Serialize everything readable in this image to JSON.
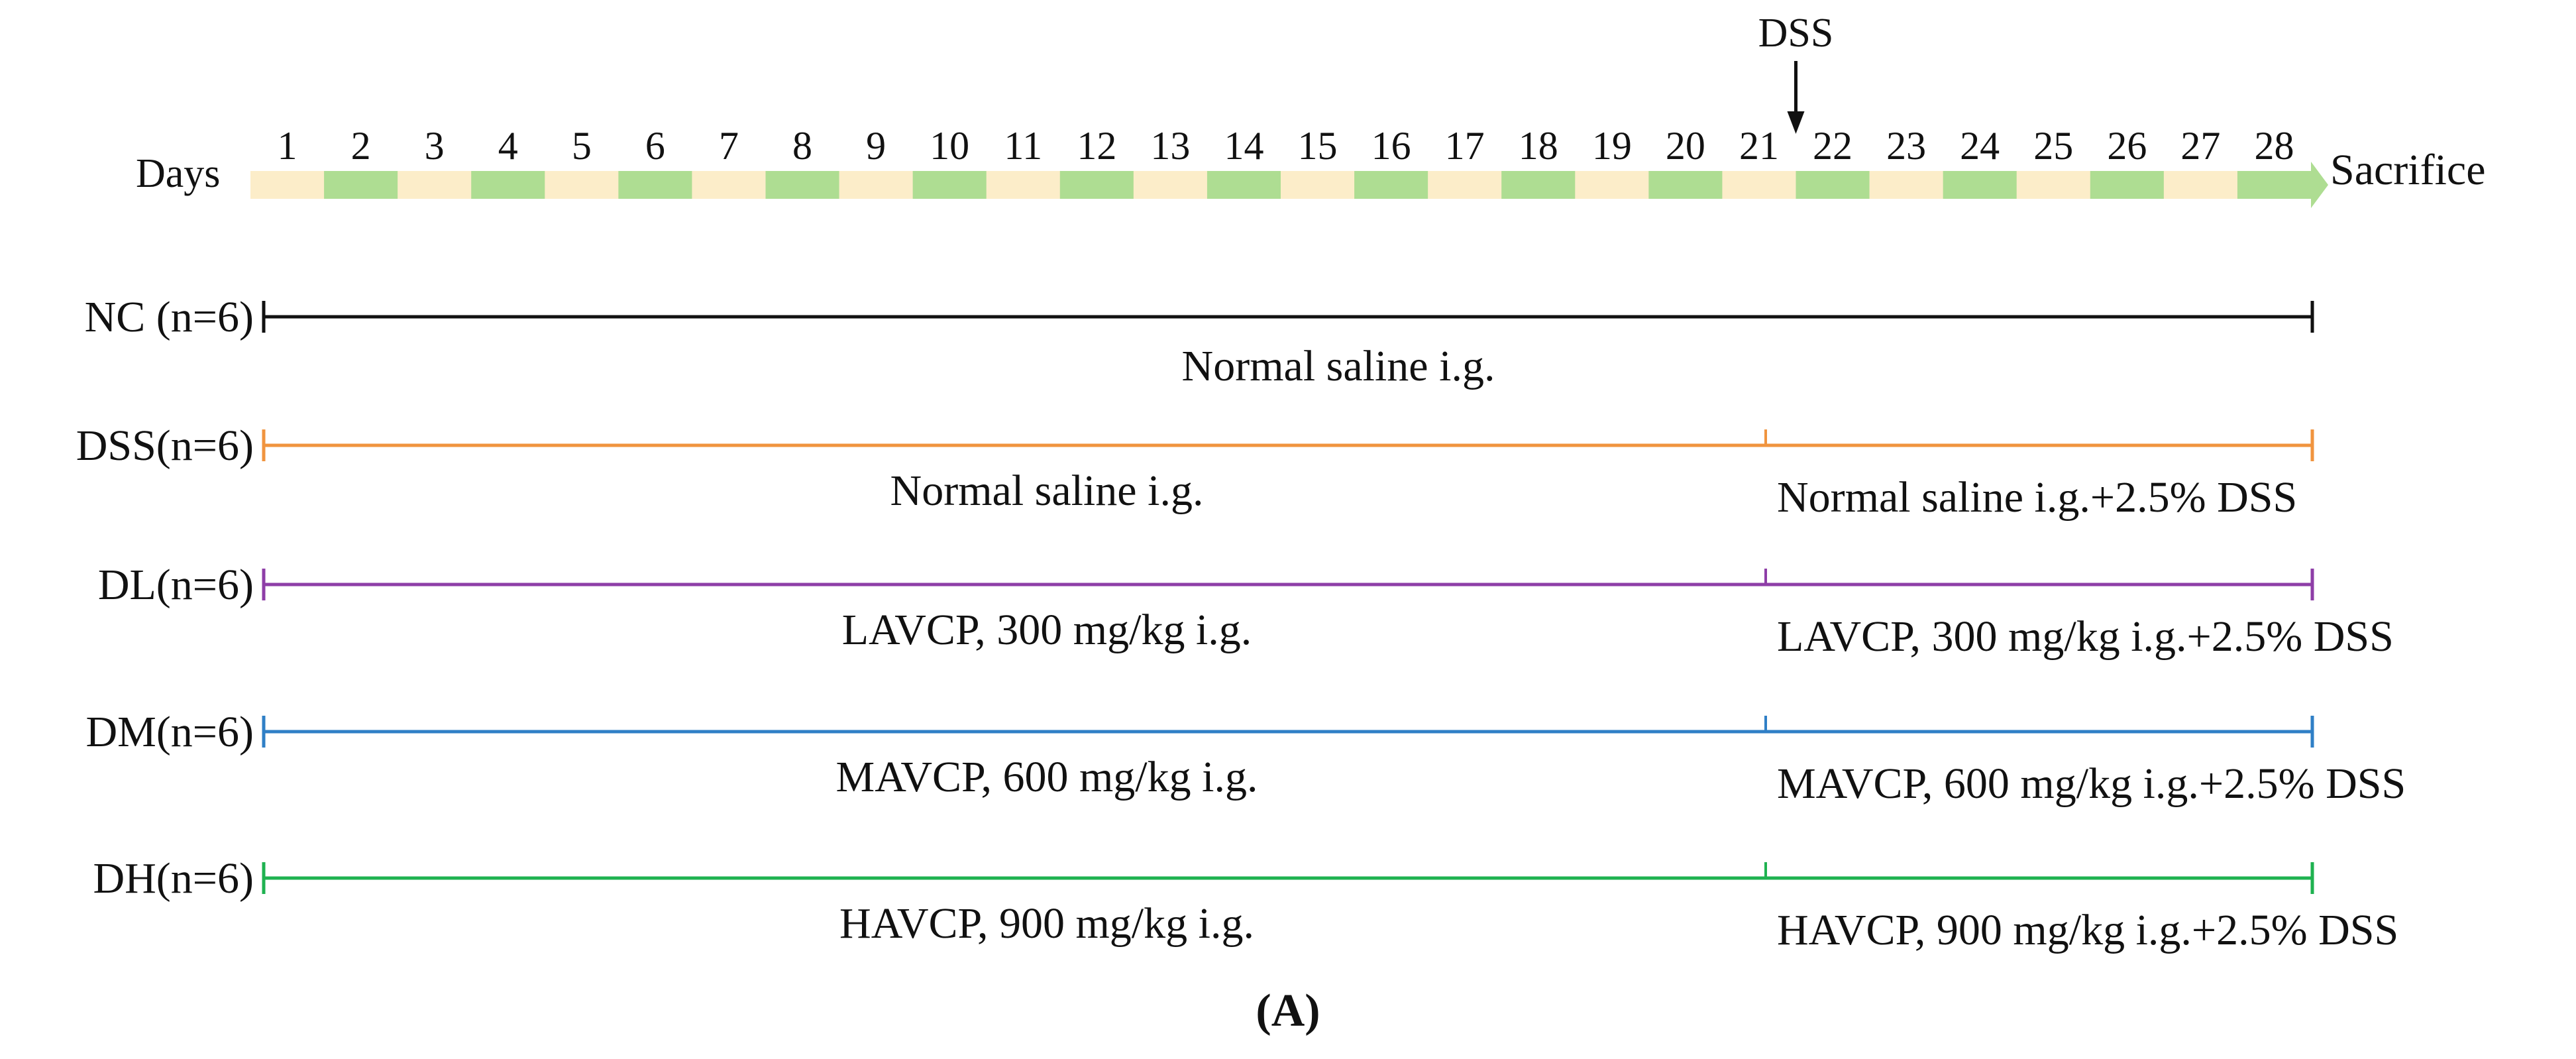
{
  "timeline": {
    "axis_label": "Days",
    "end_label": "Sacrifice",
    "day_count": 28,
    "days": [
      "1",
      "2",
      "3",
      "4",
      "5",
      "6",
      "7",
      "8",
      "9",
      "10",
      "11",
      "12",
      "13",
      "14",
      "15",
      "16",
      "17",
      "18",
      "19",
      "20",
      "21",
      "22",
      "23",
      "24",
      "25",
      "26",
      "27",
      "28"
    ],
    "marker_label": "DSS",
    "marker_day": 21.5,
    "colors": {
      "light_segment": "#fcedc9",
      "dark_segment": "#aedd92",
      "arrow_head": "#aedd92"
    }
  },
  "groups": [
    {
      "id": "nc",
      "label": "NC (n=6)",
      "color": "#111111",
      "split": false,
      "phase1_text": "Normal saline i.g.",
      "phase2_text": ""
    },
    {
      "id": "dss",
      "label": "DSS(n=6)",
      "color": "#f0943f",
      "split": true,
      "phase1_text": "Normal saline i.g.",
      "phase2_text": "Normal saline i.g.+2.5% DSS"
    },
    {
      "id": "dl",
      "label": "DL(n=6)",
      "color": "#8e3ea7",
      "split": true,
      "phase1_text": "LAVCP, 300 mg/kg i.g.",
      "phase2_text": "LAVCP, 300 mg/kg i.g.+2.5% DSS"
    },
    {
      "id": "dm",
      "label": "DM(n=6)",
      "color": "#2f7fc6",
      "split": true,
      "phase1_text": "MAVCP, 600 mg/kg i.g.",
      "phase2_text": "MAVCP, 600 mg/kg i.g.+2.5% DSS"
    },
    {
      "id": "dh",
      "label": "DH(n=6)",
      "color": "#1fb250",
      "split": true,
      "phase1_text": "HAVCP, 900 mg/kg i.g.",
      "phase2_text": "HAVCP, 900 mg/kg i.g.+2.5% DSS"
    }
  ],
  "panel_label": "(A)"
}
